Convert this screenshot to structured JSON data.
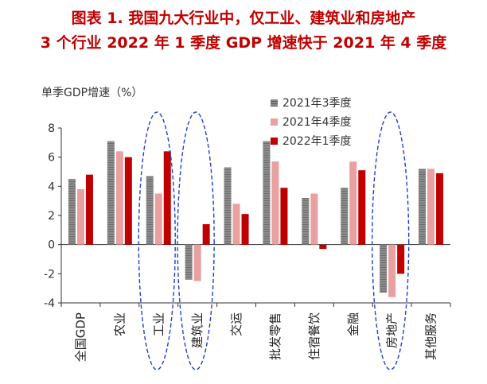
{
  "header": {
    "line1": "图表 1.  我国九大行业中，仅工业、建筑业和房地产",
    "line2": "3 个行业 2022 年 1 季度 GDP 增速快于 2021 年 4 季度"
  },
  "chart_data": {
    "type": "bar",
    "title": "图表 1.  我国九大行业中，仅工业、建筑业和房地产 3 个行业 2022 年 1 季度 GDP 增速快于 2021 年 4 季度",
    "ylabel": "单季GDP增速（%）",
    "ylim": [
      -4,
      8
    ],
    "yticks": [
      -4,
      -2,
      0,
      2,
      4,
      6,
      8
    ],
    "categories": [
      "全国GDP",
      "农业",
      "工业",
      "建筑业",
      "交运",
      "批发零售",
      "住宿餐饮",
      "金融",
      "房地产",
      "其他服务"
    ],
    "series": [
      {
        "name": "2021年3季度",
        "color": "#7f7f7f",
        "pattern": "striped",
        "values": [
          4.5,
          7.1,
          4.7,
          -2.4,
          5.3,
          7.1,
          3.2,
          3.9,
          -3.3,
          5.2
        ]
      },
      {
        "name": "2021年4季度",
        "color": "#e8a0a0",
        "pattern": "solid",
        "values": [
          3.8,
          6.4,
          3.5,
          -2.5,
          2.8,
          5.7,
          3.5,
          5.7,
          -3.6,
          5.2
        ]
      },
      {
        "name": "2022年1季度",
        "color": "#c00000",
        "pattern": "solid",
        "values": [
          4.8,
          6.0,
          6.4,
          1.4,
          2.1,
          3.9,
          -0.3,
          5.1,
          -2.0,
          4.9
        ]
      }
    ],
    "highlighted_categories": [
      "工业",
      "建筑业",
      "房地产"
    ],
    "legend_position": "top-right"
  }
}
